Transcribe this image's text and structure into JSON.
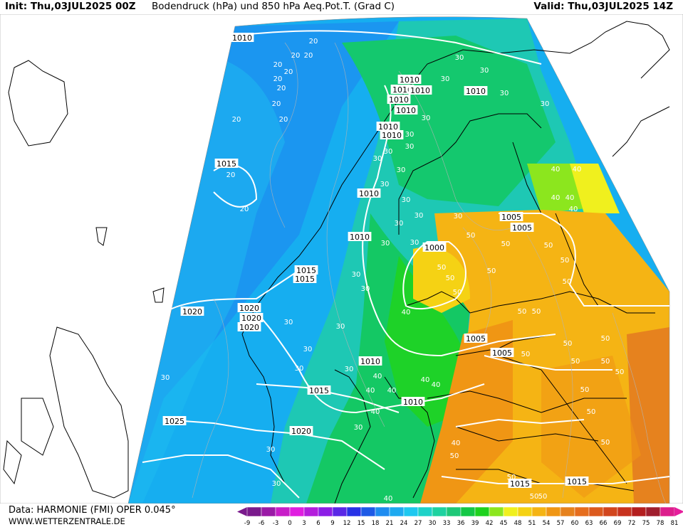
{
  "header": {
    "init": "Init: Thu,03JUL2025 00Z",
    "title": "Bodendruck (hPa) und 850 hPa Aeq.Pot.T. (Grad C)",
    "valid": "Valid: Thu,03JUL2025 14Z"
  },
  "footer": {
    "data_source": "Data: HARMONIE (FMI) OPER 0.045°",
    "website": "WWW.WETTERZENTRALE.DE"
  },
  "scale": {
    "labels": [
      "-9",
      "-6",
      "-3",
      "0",
      "3",
      "6",
      "9",
      "12",
      "15",
      "18",
      "21",
      "24",
      "27",
      "30",
      "33",
      "36",
      "39",
      "42",
      "45",
      "48",
      "51",
      "54",
      "57",
      "60",
      "63",
      "66",
      "69",
      "72",
      "75",
      "78",
      "81"
    ],
    "colors": [
      "#7a1a8c",
      "#9a1aa6",
      "#c81ec8",
      "#e01ee0",
      "#b41edc",
      "#8c1ee6",
      "#5a28e6",
      "#2832e6",
      "#1e5ae6",
      "#1e8cf0",
      "#1eaaf0",
      "#1ec8f0",
      "#1ed2c8",
      "#1ed2a0",
      "#1ec878",
      "#14c846",
      "#1ed21e",
      "#8ce61e",
      "#f0f01e",
      "#f5d214",
      "#f5b414",
      "#f09614",
      "#e6821e",
      "#e66e1e",
      "#dc5a1e",
      "#d2461e",
      "#c8321e",
      "#b41e1e",
      "#a01e2d",
      "#dc1e8c"
    ]
  },
  "map": {
    "isobars": [
      "1010",
      "1010",
      "1010",
      "1010",
      "1010",
      "1010",
      "1010",
      "1010",
      "1010",
      "1010",
      "1010",
      "1010",
      "1010",
      "1015",
      "1015",
      "1015",
      "1015",
      "1015",
      "1015",
      "1020",
      "1020",
      "1020",
      "1020",
      "1020",
      "1025",
      "1005",
      "1005",
      "1005",
      "1005",
      "1000"
    ],
    "theta_e": [
      "20",
      "20",
      "20",
      "20",
      "20",
      "20",
      "20",
      "20",
      "20",
      "20",
      "20",
      "20",
      "30",
      "30",
      "30",
      "30",
      "30",
      "30",
      "30",
      "30",
      "30",
      "30",
      "30",
      "30",
      "30",
      "30",
      "30",
      "30",
      "30",
      "30",
      "30",
      "30",
      "30",
      "30",
      "30",
      "30",
      "30",
      "30",
      "30",
      "30",
      "30",
      "40",
      "40",
      "40",
      "40",
      "40",
      "40",
      "40",
      "40",
      "40",
      "40",
      "40",
      "40",
      "40",
      "40",
      "50",
      "50",
      "50",
      "50",
      "50",
      "50",
      "50",
      "50",
      "50",
      "50",
      "50",
      "50",
      "50",
      "50",
      "50",
      "50",
      "50",
      "50",
      "50",
      "50",
      "50",
      "50",
      "50",
      "50"
    ]
  }
}
